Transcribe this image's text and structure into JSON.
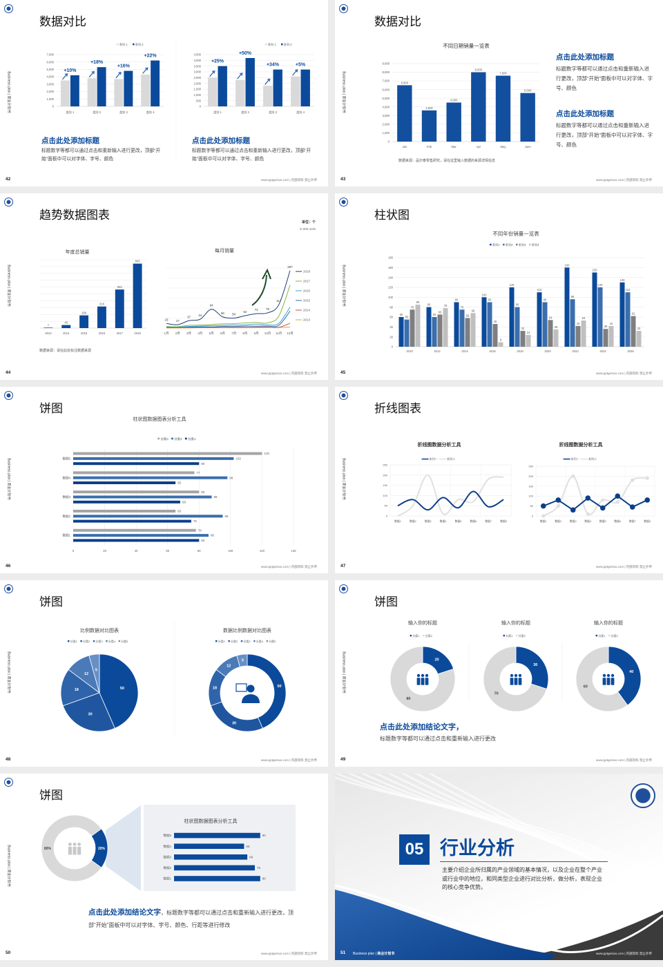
{
  "common": {
    "side_text": "Business plan | 商业计划书",
    "footer": "www.pptgenius.com | 内部资料 禁止外传",
    "brand_color": "#0b4a9b"
  },
  "slides": [
    {
      "page": "42",
      "title": "数据对比",
      "blocks": [
        {
          "heading": "点击此处添加标题",
          "body": "标题数字等都可以通过点击和重新输入进行更改，顶部“开始”面板中可以对字体、字号、颜色"
        },
        {
          "heading": "点击此处添加标题",
          "body": "标题数字等都可以通过点击和重新输入进行更改，顶部“开始”面板中可以对字体、字号、颜色"
        }
      ]
    },
    {
      "page": "43",
      "title": "数据对比",
      "source": "数据来源：品尔泰零售研究，请在这里输入数据的来源详情信息",
      "blocks": [
        {
          "heading": "点击此处添加标题",
          "body": "标题数字等都可以通过点击和重新输入进行更改，顶部“开始”面板中可以对字体、字号、颜色"
        },
        {
          "heading": "点击此处添加标题",
          "body": "标题数字等都可以通过点击和重新输入进行更改，顶部“开始”面板中可以对字体、字号、颜色"
        }
      ]
    },
    {
      "page": "44",
      "title": "趋势数据图表",
      "unit": "单位：个",
      "unit_en": "in 000 units",
      "source": "数据来源：请在此处标注数据来源"
    },
    {
      "page": "45",
      "title": "柱状图"
    },
    {
      "page": "46",
      "title": "饼图"
    },
    {
      "page": "47",
      "title": "折线图表"
    },
    {
      "page": "48",
      "title": "饼图"
    },
    {
      "page": "49",
      "title": "饼图",
      "heading": "点击此处添加结论文字，",
      "body": "标题数字等都可以通过点击和重新输入进行更改"
    },
    {
      "page": "50",
      "title": "饼图",
      "heading": "点击此处添加结论文字",
      "body": "，标题数字等都可以通过点击和重新输入进行更改，顶部“开始”面板中可以对字体、字号、颜色、行距等进行修改"
    },
    {
      "page": "51",
      "number": "05",
      "title": "行业分析",
      "body": "主要介绍企业所归属的产业领域的基本情况，以及企业在整个产业或行业中的地位，和同类型企业进行对比分析，做分析，表现企业的核心竞争优势。",
      "footer_left_en": "Business plan |",
      "footer_left_cn": "商业计划书"
    }
  ],
  "chart_data": [
    {
      "type": "bar",
      "categories": [
        "类别 1",
        "类别 2",
        "类别 3",
        "类别 4"
      ],
      "ylim": [
        0,
        7000
      ],
      "ytick": 1000,
      "grid": true,
      "legend": "top-right",
      "series": [
        {
          "name": "系列 1",
          "values": [
            3500,
            3800,
            3700,
            4300
          ],
          "color": "#d9d9d9"
        },
        {
          "name": "系列 2",
          "values": [
            4200,
            5300,
            4800,
            6200
          ],
          "color": "#0b4a9b"
        }
      ],
      "annotations": [
        "+10%",
        "+18%",
        "+16%",
        "+22%"
      ]
    },
    {
      "type": "bar",
      "categories": [
        "类别 1",
        "类别 2",
        "类别 3",
        "类别 4"
      ],
      "ylim": [
        0,
        4500
      ],
      "ytick": 500,
      "grid": true,
      "legend": "top-right",
      "series": [
        {
          "name": "系列 1",
          "values": [
            2500,
            2300,
            1800,
            2600
          ],
          "color": "#d9d9d9"
        },
        {
          "name": "系列 2",
          "values": [
            3500,
            4200,
            3200,
            3200
          ],
          "color": "#0b4a9b"
        }
      ],
      "annotations": [
        "+25%",
        "+50%",
        "+34%",
        "+5%"
      ]
    },
    {
      "type": "bar",
      "title": "不同日期销量一览表",
      "categories": [
        "Jan",
        "Feb",
        "Mar",
        "Apr",
        "May",
        "June"
      ],
      "ylim": [
        0,
        9000
      ],
      "ytick": 1000,
      "grid": true,
      "series": [
        {
          "values": [
            6500,
            3600,
            4500,
            8000,
            7600,
            5600
          ],
          "color": "#134f9f"
        }
      ]
    },
    {
      "type": "bar",
      "title": "年度总销量",
      "categories": [
        "2013",
        "2014",
        "2015",
        "2016",
        "2017",
        "2018"
      ],
      "ylim": [
        0,
        1000
      ],
      "ytick": 100,
      "grid": true,
      "series": [
        {
          "values": [
            7,
            45,
            186,
            316,
            564,
            943
          ],
          "color": "#0b4a9b"
        }
      ]
    },
    {
      "type": "line",
      "title": "每月销量",
      "categories": [
        "1月",
        "2月",
        "3月",
        "4月",
        "5月",
        "6月",
        "7月",
        "8月",
        "9月",
        "10月",
        "11月",
        "12月"
      ],
      "ylim": [
        0,
        300
      ],
      "ytick": 50,
      "grid": true,
      "legend": "right",
      "series": [
        {
          "name": "2018",
          "values": [
            23,
            17,
            37,
            44,
            94,
            56,
            50,
            62,
            72,
            76,
            117,
            287
          ],
          "color": "#1f3c7a",
          "labels": true
        },
        {
          "name": "2017",
          "values": [
            8,
            7,
            14,
            15,
            18,
            21,
            22,
            26,
            28,
            26,
            60,
            215
          ],
          "color": "#8db53c"
        },
        {
          "name": "2016",
          "values": [
            5,
            5,
            8,
            10,
            12,
            14,
            15,
            16,
            20,
            16,
            24,
            105
          ],
          "color": "#37a6d8"
        },
        {
          "name": "2015",
          "values": [
            4,
            4,
            6,
            6,
            6,
            8,
            8,
            10,
            10,
            10,
            14,
            85
          ],
          "color": "#2d6db0"
        },
        {
          "name": "2014",
          "values": [
            2,
            2,
            3,
            3,
            3,
            4,
            4,
            4,
            5,
            5,
            4,
            24
          ],
          "color": "#c0504d"
        },
        {
          "name": "2013",
          "values": [
            1,
            1,
            1,
            2,
            2,
            2,
            2,
            2,
            3,
            3,
            3,
            5
          ],
          "color": "#f0a030"
        }
      ]
    },
    {
      "type": "bar",
      "title": "不同年份销量一览表",
      "categories": [
        "2010",
        "2012",
        "2014",
        "2016",
        "2018",
        "2020",
        "2022",
        "2024",
        "2026"
      ],
      "ylim": [
        0,
        180
      ],
      "ytick": 20,
      "grid": true,
      "legend": "top",
      "series": [
        {
          "name": "系列1",
          "values": [
            60,
            80,
            90,
            100,
            120,
            110,
            160,
            150,
            130
          ],
          "color": "#0b4a9b"
        },
        {
          "name": "系列2",
          "values": [
            55,
            60,
            75,
            90,
            80,
            90,
            96,
            120,
            110
          ],
          "color": "#3a6ead"
        },
        {
          "name": "系列3",
          "values": [
            75,
            65,
            58,
            46,
            32,
            54,
            42,
            36,
            62
          ],
          "color": "#7f7f7f"
        },
        {
          "name": "系列4",
          "values": [
            85,
            78,
            68,
            9,
            24,
            35,
            53,
            42,
            32
          ],
          "color": "#bfbfbf"
        }
      ]
    },
    {
      "type": "bar",
      "orientation": "horizontal",
      "title": "柱状图数据图表分析工具",
      "categories": [
        "数据1",
        "数据2",
        "数据3",
        "数据4",
        "数据5"
      ],
      "xlim": [
        0,
        140
      ],
      "xtick": 20,
      "grid": true,
      "legend": "top",
      "series": [
        {
          "name": "分类3",
          "values": [
            78,
            65,
            80,
            77,
            120
          ],
          "color": "#a5a5a5"
        },
        {
          "name": "分类2",
          "values": [
            86,
            95,
            88,
            98,
            102
          ],
          "color": "#3a6ead"
        },
        {
          "name": "分类1",
          "values": [
            80,
            75,
            68,
            65,
            80
          ],
          "color": "#0b3f88"
        }
      ]
    },
    {
      "type": "line",
      "smooth": true,
      "title": "折线图数据分析工具",
      "categories": [
        "数据1",
        "数据2",
        "数据3",
        "数据4",
        "数据5",
        "数据6",
        "数据7",
        "数据8"
      ],
      "ylim": [
        0,
        250
      ],
      "ytick": 50,
      "grid": true,
      "legend": "top",
      "series": [
        {
          "name": "系列一",
          "values": [
            50,
            80,
            30,
            90,
            40,
            120,
            45,
            80
          ],
          "color": "#0b3f88"
        },
        {
          "name": "系列二",
          "values": [
            0,
            50,
            200,
            10,
            80,
            70,
            180,
            190
          ],
          "color": "#e0e0e0"
        }
      ]
    },
    {
      "type": "line",
      "markers": true,
      "title": "折线图数据分析工具",
      "categories": [
        "数据1",
        "数据2",
        "数据3",
        "数据4",
        "数据5",
        "数据6",
        "数据7",
        "数据8"
      ],
      "ylim": [
        0,
        250
      ],
      "ytick": 50,
      "grid": true,
      "legend": "top",
      "series": [
        {
          "name": "系列一",
          "values": [
            50,
            80,
            30,
            90,
            40,
            100,
            45,
            80
          ],
          "color": "#0b3f88"
        },
        {
          "name": "系列二",
          "values": [
            0,
            50,
            200,
            10,
            80,
            70,
            180,
            190
          ],
          "color": "#e0e0e0"
        }
      ]
    },
    {
      "type": "pie",
      "title": "比例数据对比图表",
      "categories": [
        "分类1",
        "分类2",
        "分类3",
        "分类4",
        "分类5"
      ],
      "values": [
        50,
        30,
        18,
        12,
        5
      ],
      "colors": [
        "#0b4a9b",
        "#1f569f",
        "#2f64aa",
        "#4a7ab8",
        "#6690c6"
      ],
      "legend": "top"
    },
    {
      "type": "pie",
      "donut": true,
      "title": "数据比例数据对比图表",
      "categories": [
        "分类1",
        "分类2",
        "分类3",
        "分类4",
        "分类5"
      ],
      "values": [
        50,
        30,
        18,
        12,
        5
      ],
      "colors": [
        "#0b4a9b",
        "#1f569f",
        "#2f64aa",
        "#4a7ab8",
        "#6690c6"
      ],
      "legend": "top",
      "center_icon": "person-chat-icon"
    },
    {
      "type": "pie",
      "donut": true,
      "title": "输入你的标题",
      "categories": [
        "分类1",
        "分类2"
      ],
      "values": [
        20,
        80
      ],
      "colors": [
        "#0b4a9b",
        "#d9d9d9"
      ],
      "legend": "top",
      "center_icon": "people-icon"
    },
    {
      "type": "pie",
      "donut": true,
      "title": "输入你的标题",
      "categories": [
        "分类1",
        "分类2"
      ],
      "values": [
        30,
        70
      ],
      "colors": [
        "#0b4a9b",
        "#d9d9d9"
      ],
      "legend": "top",
      "center_icon": "people-icon"
    },
    {
      "type": "pie",
      "donut": true,
      "title": "输入你的标题",
      "categories": [
        "分类1",
        "分类2"
      ],
      "values": [
        40,
        60
      ],
      "colors": [
        "#0b4a9b",
        "#d9d9d9"
      ],
      "legend": "top",
      "center_icon": "people-icon"
    },
    {
      "type": "pie",
      "donut": true,
      "labels": [
        "20%",
        "80%"
      ],
      "values": [
        20,
        80
      ],
      "colors": [
        "#0b4a9b",
        "#d9d9d9"
      ],
      "center_icon": "team-icon"
    },
    {
      "type": "bar",
      "orientation": "horizontal",
      "title": "柱状图数据图表分析工具",
      "categories": [
        "数据1",
        "数据2",
        "数据3",
        "数据4",
        "数据5"
      ],
      "xlim": [
        0,
        100
      ],
      "series": [
        {
          "values": [
            80,
            75,
            68,
            65,
            80
          ],
          "color": "#0b4a9b"
        }
      ]
    }
  ]
}
